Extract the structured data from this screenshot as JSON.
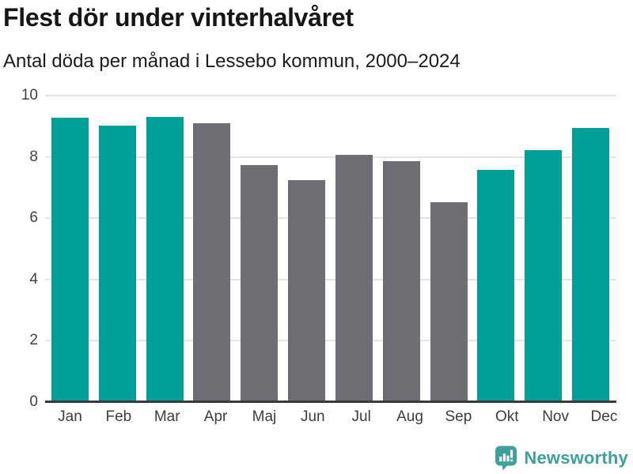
{
  "header": {
    "title": "Flest dör under vinterhalvåret",
    "subtitle": "Antal döda per månad i Lessebo kommun, 2000–2024"
  },
  "chart_data": {
    "type": "bar",
    "title": "Flest dör under vinterhalvåret",
    "subtitle": "Antal döda per månad i Lessebo kommun, 2000–2024",
    "categories": [
      "Jan",
      "Feb",
      "Mar",
      "Apr",
      "Maj",
      "Jun",
      "Jul",
      "Aug",
      "Sep",
      "Okt",
      "Nov",
      "Dec"
    ],
    "values": [
      9.28,
      9.03,
      9.31,
      9.11,
      7.73,
      7.25,
      8.07,
      7.85,
      6.52,
      7.57,
      8.21,
      8.95
    ],
    "xlabel": "",
    "ylabel": "",
    "ylim": [
      0,
      10
    ],
    "y_ticks": [
      0,
      2,
      4,
      6,
      8,
      10
    ],
    "grid": true,
    "legend": false,
    "palette": {
      "winter": "#00a099",
      "summer": "#6e6d73"
    },
    "bar_season": [
      "winter",
      "winter",
      "winter",
      "summer",
      "summer",
      "summer",
      "summer",
      "summer",
      "summer",
      "winter",
      "winter",
      "winter"
    ]
  },
  "footer": {
    "brand": "Newsworthy",
    "brand_color": "#3fa09c"
  }
}
